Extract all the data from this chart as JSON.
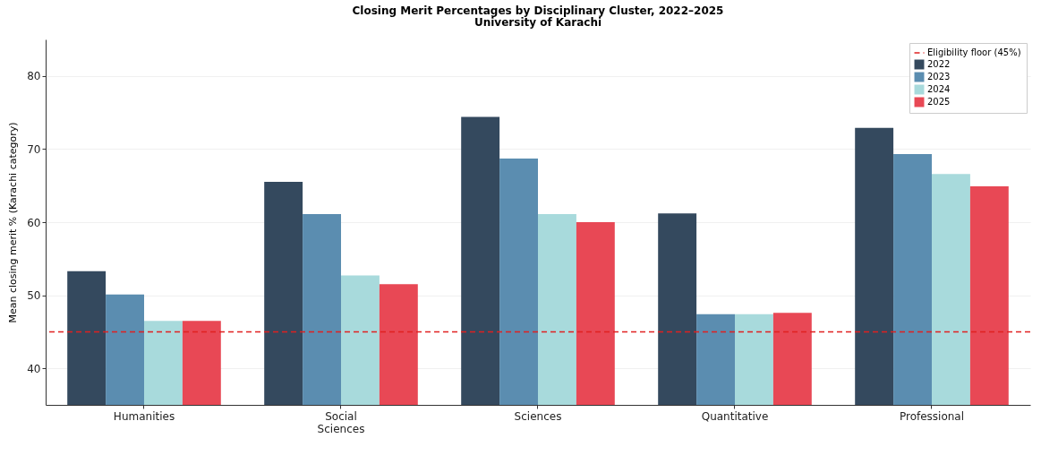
{
  "chart_data": {
    "type": "bar",
    "title": "Closing Merit Percentages by Disciplinary Cluster, 2022–2025",
    "subtitle": "University of Karachi",
    "ylabel": "Mean closing merit % (Karachi category)",
    "categories": [
      "Humanities",
      "Social Sciences",
      "Sciences",
      "Quantitative",
      "Professional"
    ],
    "series": [
      {
        "name": "2022",
        "color": "#34495e",
        "values": [
          53.3,
          65.5,
          74.4,
          61.2,
          72.9
        ]
      },
      {
        "name": "2023",
        "color": "#5b8db0",
        "values": [
          50.1,
          61.1,
          68.7,
          47.4,
          69.3
        ]
      },
      {
        "name": "2024",
        "color": "#a8dadc",
        "values": [
          46.5,
          52.7,
          61.1,
          47.4,
          66.6
        ]
      },
      {
        "name": "2025",
        "color": "#e84855",
        "values": [
          46.5,
          51.5,
          60.0,
          47.6,
          64.9
        ]
      }
    ],
    "ylim": [
      35,
      85
    ],
    "yticks": [
      40,
      50,
      60,
      70,
      80
    ],
    "ref_lines": [
      {
        "axis": "y",
        "value": 45,
        "label": "Eligibility floor (45%)",
        "color": "#e02020",
        "line_style": "dashed"
      }
    ],
    "grid": "y",
    "legend": "top right"
  }
}
